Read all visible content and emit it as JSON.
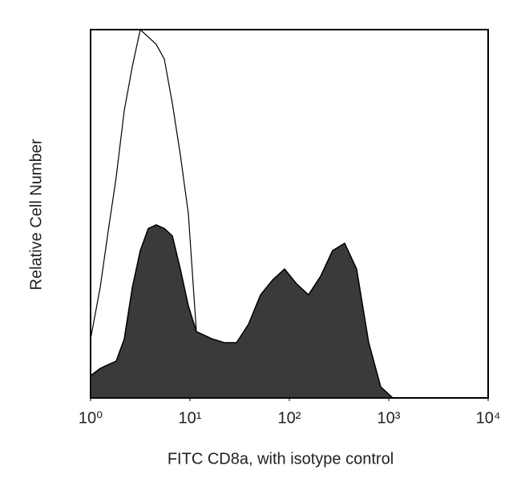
{
  "chart_data": {
    "type": "histogram-overlay",
    "x_label": "FITC CD8a, with isotype control",
    "y_label": "Relative Cell Number",
    "xscale": "log",
    "xlim": [
      1,
      10000
    ],
    "xticks": [
      {
        "value": 1,
        "label": "10⁰"
      },
      {
        "value": 10,
        "label": "10¹"
      },
      {
        "value": 100,
        "label": "10²"
      },
      {
        "value": 1000,
        "label": "10³"
      },
      {
        "value": 10000,
        "label": "10⁴"
      }
    ],
    "ylim": [
      0,
      100
    ],
    "x": [
      1,
      1.25,
      1.5,
      1.81,
      2.18,
      2.63,
      3.16,
      3.81,
      4.58,
      5.52,
      6.65,
      8.0,
      9.64,
      11.6,
      14.0,
      16.8,
      22.2,
      29.4,
      38.8,
      51.3,
      67.7,
      89.5,
      118,
      156,
      206,
      272,
      360,
      475,
      629,
      830,
      1097
    ],
    "series": [
      {
        "color": "#000000",
        "filled": false,
        "values": [
          16,
          30,
          45,
          60,
          78,
          90,
          100,
          98,
          96,
          92,
          80,
          66,
          50,
          18,
          8,
          3,
          2,
          1,
          1.5,
          1,
          0.5,
          0.5,
          0.3,
          0.3,
          0.5,
          0.3,
          0.2,
          0,
          0,
          0,
          0
        ]
      },
      {
        "color": "#3a3a3a",
        "filled": true,
        "values": [
          6,
          8,
          9,
          10,
          16,
          30,
          40,
          46,
          47,
          46,
          44,
          35,
          25,
          18,
          17,
          16,
          15,
          15,
          20,
          28,
          32,
          35,
          31,
          28,
          33,
          40,
          42,
          35,
          15,
          3,
          0
        ]
      }
    ]
  }
}
